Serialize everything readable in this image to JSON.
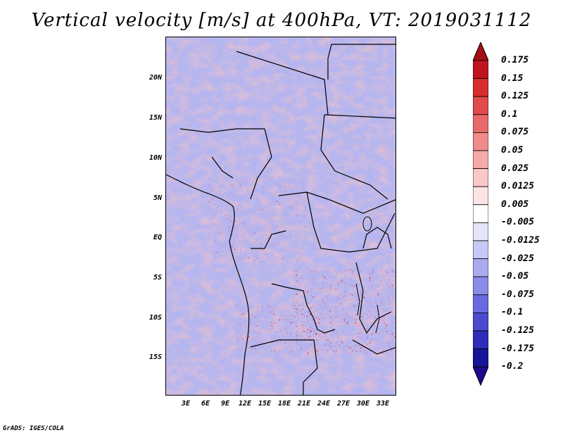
{
  "title": "Vertical velocity [m/s] at 400hPa, VT: 2019031112",
  "credit": "GrADS: IGES/COLA",
  "lat_labels": [
    "20N",
    "15N",
    "10N",
    "5N",
    "EQ",
    "5S",
    "10S",
    "15S"
  ],
  "lon_labels": [
    "3E",
    "6E",
    "9E",
    "12E",
    "15E",
    "18E",
    "21E",
    "24E",
    "27E",
    "30E",
    "33E"
  ],
  "colorbar": {
    "labels": [
      "0.175",
      "0.15",
      "0.125",
      "0.1",
      "0.075",
      "0.05",
      "0.025",
      "0.0125",
      "0.005",
      "-0.005",
      "-0.0125",
      "-0.025",
      "-0.05",
      "-0.075",
      "-0.1",
      "-0.125",
      "-0.175",
      "-0.2"
    ],
    "colors": [
      "#a50f15",
      "#c0151f",
      "#d82d2d",
      "#e04b4b",
      "#e86a6a",
      "#f08b8b",
      "#f5aaaa",
      "#f9c8c8",
      "#fde4e4",
      "#ffffff",
      "#e4e4fb",
      "#c8c8f5",
      "#aaaaef",
      "#8b8be8",
      "#6a6ae0",
      "#4b4bd0",
      "#2d2db8",
      "#15159a",
      "#0a0a80"
    ]
  },
  "icons": {
    "arrow_top_color": "#a50f15",
    "arrow_bottom_color": "#1e0a8c"
  }
}
